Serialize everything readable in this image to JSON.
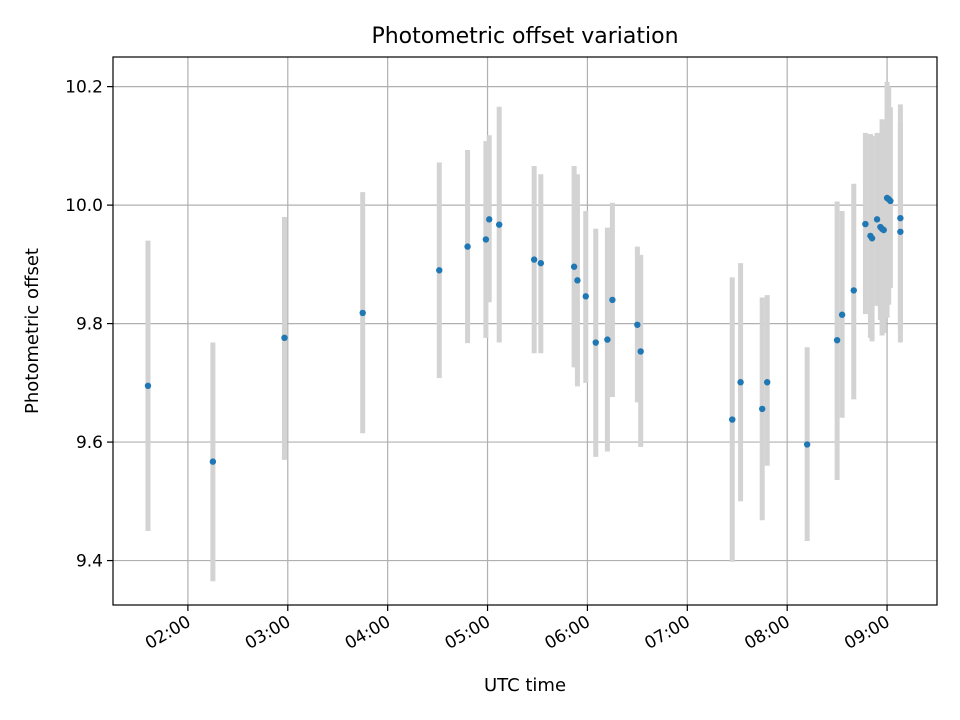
{
  "chart_data": {
    "type": "scatter",
    "title": "Photometric offset variation",
    "xlabel": "UTC time",
    "ylabel": "Photometric offset",
    "xlim": [
      "01:15",
      "09:30"
    ],
    "ylim": [
      9.325,
      10.25
    ],
    "xticks": [
      "02:00",
      "03:00",
      "04:00",
      "05:00",
      "06:00",
      "07:00",
      "08:00",
      "09:00"
    ],
    "yticks": [
      9.4,
      9.6,
      9.8,
      10.0,
      10.2
    ],
    "grid": true,
    "error_bar_color": "#d3d3d3",
    "marker_color": "#1f77b4",
    "points": [
      {
        "t": "01:36",
        "y": 9.695,
        "lo": 9.45,
        "hi": 9.94
      },
      {
        "t": "02:15",
        "y": 9.567,
        "lo": 9.365,
        "hi": 9.768
      },
      {
        "t": "02:58",
        "y": 9.776,
        "lo": 9.57,
        "hi": 9.98
      },
      {
        "t": "03:45",
        "y": 9.818,
        "lo": 9.615,
        "hi": 10.022
      },
      {
        "t": "04:31",
        "y": 9.89,
        "lo": 9.708,
        "hi": 10.072
      },
      {
        "t": "04:48",
        "y": 9.93,
        "lo": 9.767,
        "hi": 10.093
      },
      {
        "t": "04:59",
        "y": 9.942,
        "lo": 9.776,
        "hi": 10.108
      },
      {
        "t": "05:01",
        "y": 9.976,
        "lo": 9.836,
        "hi": 10.118
      },
      {
        "t": "05:07",
        "y": 9.967,
        "lo": 9.768,
        "hi": 10.166
      },
      {
        "t": "05:28",
        "y": 9.908,
        "lo": 9.75,
        "hi": 10.066
      },
      {
        "t": "05:32",
        "y": 9.902,
        "lo": 9.75,
        "hi": 10.052
      },
      {
        "t": "05:52",
        "y": 9.896,
        "lo": 9.726,
        "hi": 10.066
      },
      {
        "t": "05:54",
        "y": 9.873,
        "lo": 9.694,
        "hi": 10.052
      },
      {
        "t": "05:59",
        "y": 9.846,
        "lo": 9.7,
        "hi": 9.99
      },
      {
        "t": "06:05",
        "y": 9.768,
        "lo": 9.575,
        "hi": 9.96
      },
      {
        "t": "06:12",
        "y": 9.773,
        "lo": 9.584,
        "hi": 9.962
      },
      {
        "t": "06:15",
        "y": 9.84,
        "lo": 9.676,
        "hi": 10.004
      },
      {
        "t": "06:30",
        "y": 9.798,
        "lo": 9.667,
        "hi": 9.93
      },
      {
        "t": "06:32",
        "y": 9.753,
        "lo": 9.592,
        "hi": 9.916
      },
      {
        "t": "07:27",
        "y": 9.638,
        "lo": 9.398,
        "hi": 9.878
      },
      {
        "t": "07:32",
        "y": 9.701,
        "lo": 9.5,
        "hi": 9.902
      },
      {
        "t": "07:45",
        "y": 9.656,
        "lo": 9.468,
        "hi": 9.844
      },
      {
        "t": "07:48",
        "y": 9.701,
        "lo": 9.56,
        "hi": 9.848
      },
      {
        "t": "08:12",
        "y": 9.596,
        "lo": 9.433,
        "hi": 9.76
      },
      {
        "t": "08:30",
        "y": 9.772,
        "lo": 9.536,
        "hi": 10.006
      },
      {
        "t": "08:33",
        "y": 9.815,
        "lo": 9.641,
        "hi": 9.99
      },
      {
        "t": "08:40",
        "y": 9.856,
        "lo": 9.672,
        "hi": 10.036
      },
      {
        "t": "08:47",
        "y": 9.968,
        "lo": 9.816,
        "hi": 10.122
      },
      {
        "t": "08:50",
        "y": 9.948,
        "lo": 9.776,
        "hi": 10.12
      },
      {
        "t": "08:51",
        "y": 9.944,
        "lo": 9.77,
        "hi": 10.117
      },
      {
        "t": "08:54",
        "y": 9.976,
        "lo": 9.83,
        "hi": 10.122
      },
      {
        "t": "08:56",
        "y": 9.963,
        "lo": 9.806,
        "hi": 10.12
      },
      {
        "t": "08:57",
        "y": 9.96,
        "lo": 9.78,
        "hi": 10.145
      },
      {
        "t": "08:58",
        "y": 9.958,
        "lo": 9.784,
        "hi": 10.13
      },
      {
        "t": "09:00",
        "y": 10.012,
        "lo": 9.81,
        "hi": 10.208
      },
      {
        "t": "09:01",
        "y": 10.01,
        "lo": 9.832,
        "hi": 10.2
      },
      {
        "t": "09:02",
        "y": 10.007,
        "lo": 9.86,
        "hi": 10.165
      },
      {
        "t": "09:08",
        "y": 9.978,
        "lo": 9.79,
        "hi": 10.17
      },
      {
        "t": "09:08",
        "y": 9.955,
        "lo": 9.768,
        "hi": 10.14
      }
    ]
  }
}
